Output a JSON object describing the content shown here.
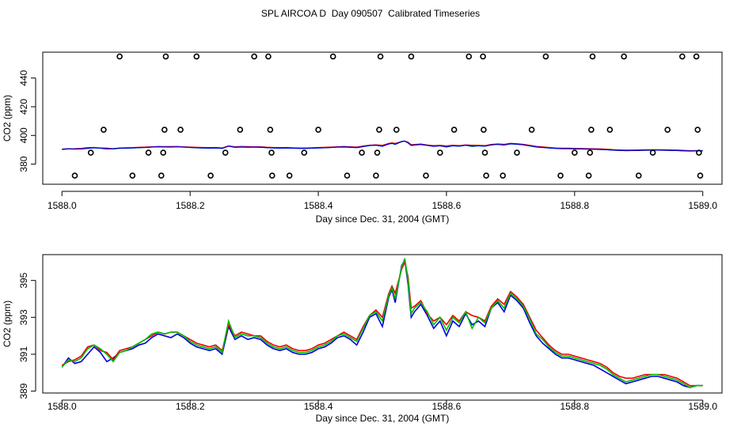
{
  "title": "SPL AIRCOA D  Day 090507  Calibrated Timeseries",
  "chart_data": [
    {
      "type": "scatter+line",
      "xlabel": "Day since Dec. 31, 2004 (GMT)",
      "ylabel": "CO2 (ppm)",
      "xlim": [
        1587.97,
        1589.03
      ],
      "ylim": [
        366,
        458
      ],
      "xticks": [
        1588.0,
        1588.2,
        1588.4,
        1588.6,
        1588.8,
        1589.0
      ],
      "xtick_labels": [
        "1588.0",
        "1588.2",
        "1588.4",
        "1588.6",
        "1588.8",
        "1589.0"
      ],
      "yticks": [
        380,
        400,
        420,
        440
      ],
      "ytick_labels": [
        "380",
        "400",
        "420",
        "440"
      ],
      "calibration_points": [
        [
          1588.02,
          372
        ],
        [
          1588.045,
          388
        ],
        [
          1588.065,
          404
        ],
        [
          1588.09,
          455
        ],
        [
          1588.11,
          372
        ],
        [
          1588.135,
          388
        ],
        [
          1588.155,
          372
        ],
        [
          1588.158,
          388
        ],
        [
          1588.16,
          404
        ],
        [
          1588.162,
          455
        ],
        [
          1588.185,
          404
        ],
        [
          1588.21,
          455
        ],
        [
          1588.232,
          372
        ],
        [
          1588.255,
          388
        ],
        [
          1588.278,
          404
        ],
        [
          1588.3,
          455
        ],
        [
          1588.322,
          455
        ],
        [
          1588.325,
          404
        ],
        [
          1588.327,
          388
        ],
        [
          1588.328,
          372
        ],
        [
          1588.355,
          372
        ],
        [
          1588.378,
          388
        ],
        [
          1588.4,
          404
        ],
        [
          1588.423,
          455
        ],
        [
          1588.445,
          372
        ],
        [
          1588.468,
          388
        ],
        [
          1588.49,
          372
        ],
        [
          1588.492,
          388
        ],
        [
          1588.495,
          404
        ],
        [
          1588.497,
          455
        ],
        [
          1588.522,
          404
        ],
        [
          1588.545,
          455
        ],
        [
          1588.568,
          372
        ],
        [
          1588.59,
          388
        ],
        [
          1588.612,
          404
        ],
        [
          1588.635,
          455
        ],
        [
          1588.657,
          455
        ],
        [
          1588.658,
          404
        ],
        [
          1588.66,
          388
        ],
        [
          1588.662,
          372
        ],
        [
          1588.688,
          372
        ],
        [
          1588.71,
          388
        ],
        [
          1588.733,
          404
        ],
        [
          1588.755,
          455
        ],
        [
          1588.778,
          372
        ],
        [
          1588.8,
          388
        ],
        [
          1588.822,
          372
        ],
        [
          1588.824,
          388
        ],
        [
          1588.826,
          404
        ],
        [
          1588.828,
          455
        ],
        [
          1588.855,
          404
        ],
        [
          1588.877,
          455
        ],
        [
          1588.9,
          372
        ],
        [
          1588.922,
          388
        ],
        [
          1588.945,
          404
        ],
        [
          1588.968,
          455
        ],
        [
          1588.99,
          455
        ],
        [
          1588.992,
          404
        ],
        [
          1588.994,
          388
        ],
        [
          1588.996,
          372
        ]
      ],
      "series": [
        {
          "name": "green",
          "color": "#00bb00",
          "offset": -0.1
        },
        {
          "name": "red",
          "color": "#ee0000",
          "offset": 0.1
        },
        {
          "name": "blue",
          "color": "#0000dd",
          "offset": 0.0
        }
      ]
    },
    {
      "type": "line",
      "xlabel": "Day since Dec. 31, 2004 (GMT)",
      "ylabel": "CO2 (ppm)",
      "xlim": [
        1587.97,
        1589.03
      ],
      "ylim": [
        388.9,
        396.4
      ],
      "xticks": [
        1588.0,
        1588.2,
        1588.4,
        1588.6,
        1588.8,
        1589.0
      ],
      "xtick_labels": [
        "1588.0",
        "1588.2",
        "1588.4",
        "1588.6",
        "1588.8",
        "1589.0"
      ],
      "yticks": [
        389,
        391,
        393,
        395
      ],
      "ytick_labels": [
        "389",
        "391",
        "393",
        "395"
      ],
      "x": [
        1588.0,
        1588.01,
        1588.02,
        1588.03,
        1588.04,
        1588.05,
        1588.06,
        1588.07,
        1588.08,
        1588.09,
        1588.1,
        1588.11,
        1588.12,
        1588.13,
        1588.14,
        1588.15,
        1588.16,
        1588.17,
        1588.18,
        1588.19,
        1588.2,
        1588.21,
        1588.22,
        1588.23,
        1588.24,
        1588.25,
        1588.26,
        1588.27,
        1588.28,
        1588.29,
        1588.3,
        1588.31,
        1588.32,
        1588.33,
        1588.34,
        1588.35,
        1588.36,
        1588.37,
        1588.38,
        1588.39,
        1588.4,
        1588.41,
        1588.42,
        1588.43,
        1588.44,
        1588.45,
        1588.46,
        1588.47,
        1588.48,
        1588.49,
        1588.5,
        1588.51,
        1588.515,
        1588.52,
        1588.53,
        1588.535,
        1588.54,
        1588.545,
        1588.55,
        1588.56,
        1588.57,
        1588.58,
        1588.59,
        1588.6,
        1588.61,
        1588.62,
        1588.63,
        1588.64,
        1588.65,
        1588.66,
        1588.67,
        1588.68,
        1588.69,
        1588.7,
        1588.71,
        1588.72,
        1588.73,
        1588.74,
        1588.75,
        1588.76,
        1588.77,
        1588.78,
        1588.79,
        1588.8,
        1588.81,
        1588.82,
        1588.83,
        1588.84,
        1588.85,
        1588.86,
        1588.87,
        1588.88,
        1588.89,
        1588.9,
        1588.91,
        1588.92,
        1588.93,
        1588.94,
        1588.95,
        1588.96,
        1588.97,
        1588.98,
        1588.99,
        1589.0
      ],
      "series": [
        {
          "name": "blue",
          "color": "#0000dd",
          "values": [
            390.3,
            390.8,
            390.5,
            390.6,
            391.0,
            391.4,
            391.1,
            390.6,
            390.8,
            391.1,
            391.2,
            391.3,
            391.5,
            391.6,
            391.9,
            392.1,
            392.0,
            391.9,
            392.1,
            391.9,
            391.6,
            391.4,
            391.3,
            391.2,
            391.3,
            391.0,
            392.5,
            391.8,
            392.0,
            391.8,
            391.9,
            391.8,
            391.5,
            391.3,
            391.2,
            391.3,
            391.1,
            391.0,
            391.0,
            391.1,
            391.3,
            391.4,
            391.6,
            391.9,
            392.0,
            391.8,
            391.5,
            392.2,
            393.0,
            393.2,
            392.5,
            394.1,
            394.5,
            393.8,
            395.8,
            396.1,
            394.8,
            393.0,
            393.3,
            393.7,
            393.1,
            392.4,
            392.8,
            392.0,
            392.8,
            392.5,
            393.2,
            392.6,
            392.8,
            392.5,
            393.5,
            393.8,
            393.3,
            394.2,
            393.9,
            393.5,
            392.7,
            392.0,
            391.6,
            391.3,
            391.0,
            390.8,
            390.8,
            390.7,
            390.6,
            390.5,
            390.4,
            390.2,
            390.0,
            389.8,
            389.6,
            389.4,
            389.5,
            389.6,
            389.7,
            389.8,
            389.8,
            389.7,
            389.6,
            389.5,
            389.3,
            389.2,
            389.3,
            389.3
          ]
        },
        {
          "name": "red",
          "color": "#ee0000",
          "values": [
            390.4,
            390.6,
            390.7,
            390.9,
            391.4,
            391.5,
            391.2,
            391.1,
            390.7,
            391.2,
            391.3,
            391.4,
            391.6,
            391.8,
            392.0,
            392.2,
            392.1,
            392.2,
            392.2,
            392.0,
            391.8,
            391.6,
            391.5,
            391.4,
            391.5,
            391.2,
            392.6,
            392.0,
            392.2,
            392.1,
            392.0,
            392.0,
            391.7,
            391.5,
            391.4,
            391.5,
            391.3,
            391.2,
            391.2,
            391.3,
            391.5,
            391.6,
            391.8,
            392.0,
            392.2,
            392.0,
            391.8,
            392.5,
            393.1,
            393.4,
            393.0,
            394.3,
            394.7,
            394.3,
            395.6,
            396.0,
            395.2,
            393.5,
            393.6,
            393.9,
            393.2,
            392.8,
            393.0,
            392.6,
            393.1,
            392.8,
            393.3,
            393.1,
            393.0,
            392.8,
            393.6,
            394.0,
            393.7,
            394.4,
            394.1,
            393.7,
            393.0,
            392.3,
            391.9,
            391.5,
            391.2,
            391.0,
            391.0,
            390.9,
            390.8,
            390.7,
            390.6,
            390.5,
            390.3,
            390.0,
            389.8,
            389.7,
            389.7,
            389.8,
            389.9,
            389.9,
            389.9,
            389.9,
            389.8,
            389.7,
            389.5,
            389.3,
            389.3,
            389.3
          ]
        },
        {
          "name": "green",
          "color": "#00bb00",
          "values": [
            390.3,
            390.7,
            390.6,
            390.8,
            391.3,
            391.5,
            391.3,
            391.0,
            390.6,
            391.1,
            391.2,
            391.4,
            391.6,
            391.8,
            392.1,
            392.2,
            392.1,
            392.2,
            392.2,
            392.0,
            391.7,
            391.5,
            391.4,
            391.3,
            391.4,
            391.1,
            392.8,
            391.9,
            392.1,
            392.0,
            392.0,
            391.9,
            391.6,
            391.4,
            391.3,
            391.4,
            391.2,
            391.1,
            391.1,
            391.2,
            391.4,
            391.5,
            391.7,
            392.0,
            392.1,
            391.9,
            391.7,
            392.4,
            393.1,
            393.3,
            392.8,
            394.2,
            394.6,
            394.0,
            395.7,
            396.2,
            395.0,
            393.2,
            393.5,
            393.8,
            393.3,
            392.6,
            393.0,
            392.3,
            393.0,
            392.7,
            393.3,
            392.4,
            393.0,
            392.7,
            393.5,
            393.9,
            393.5,
            394.3,
            394.0,
            393.6,
            392.9,
            392.1,
            391.8,
            391.4,
            391.1,
            390.9,
            390.9,
            390.8,
            390.7,
            390.6,
            390.5,
            390.4,
            390.2,
            389.9,
            389.7,
            389.5,
            389.6,
            389.7,
            389.8,
            389.9,
            389.9,
            389.8,
            389.7,
            389.6,
            389.4,
            389.2,
            389.3,
            389.3
          ]
        }
      ]
    }
  ]
}
